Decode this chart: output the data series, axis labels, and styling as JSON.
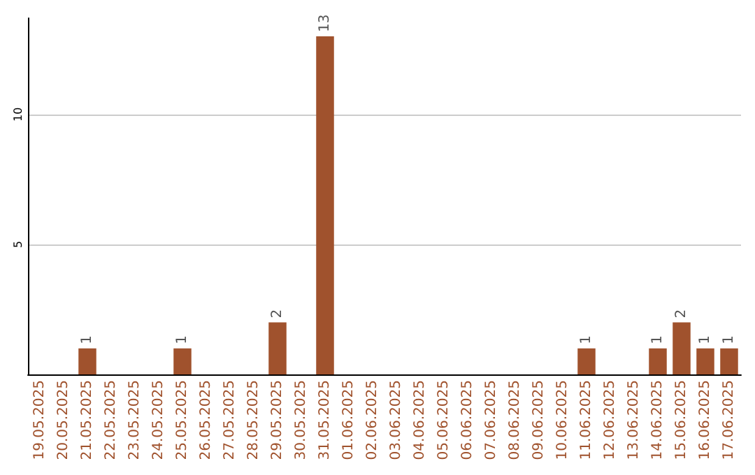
{
  "chart_data": {
    "type": "bar",
    "categories": [
      "19.05.2025",
      "20.05.2025",
      "21.05.2025",
      "22.05.2025",
      "23.05.2025",
      "24.05.2025",
      "25.05.2025",
      "26.05.2025",
      "27.05.2025",
      "28.05.2025",
      "29.05.2025",
      "30.05.2025",
      "31.05.2025",
      "01.06.2025",
      "02.06.2025",
      "03.06.2025",
      "04.06.2025",
      "05.06.2025",
      "06.06.2025",
      "07.06.2025",
      "08.06.2025",
      "09.06.2025",
      "10.06.2025",
      "11.06.2025",
      "12.06.2025",
      "13.06.2025",
      "14.06.2025",
      "15.06.2025",
      "16.06.2025",
      "17.06.2025"
    ],
    "values": [
      0,
      0,
      1,
      0,
      0,
      0,
      1,
      0,
      0,
      0,
      2,
      0,
      13,
      0,
      0,
      0,
      0,
      0,
      0,
      0,
      0,
      0,
      0,
      1,
      0,
      0,
      1,
      2,
      1,
      1
    ],
    "value_labels": [
      null,
      null,
      "1",
      null,
      null,
      null,
      "1",
      null,
      null,
      null,
      "2",
      null,
      "13",
      null,
      null,
      null,
      null,
      null,
      null,
      null,
      null,
      null,
      null,
      "1",
      null,
      null,
      "1",
      "2",
      "1",
      "1"
    ],
    "color": "#a0522d",
    "ylim": [
      0,
      13.7
    ],
    "yticks": [
      5,
      10
    ],
    "grid": "y"
  }
}
